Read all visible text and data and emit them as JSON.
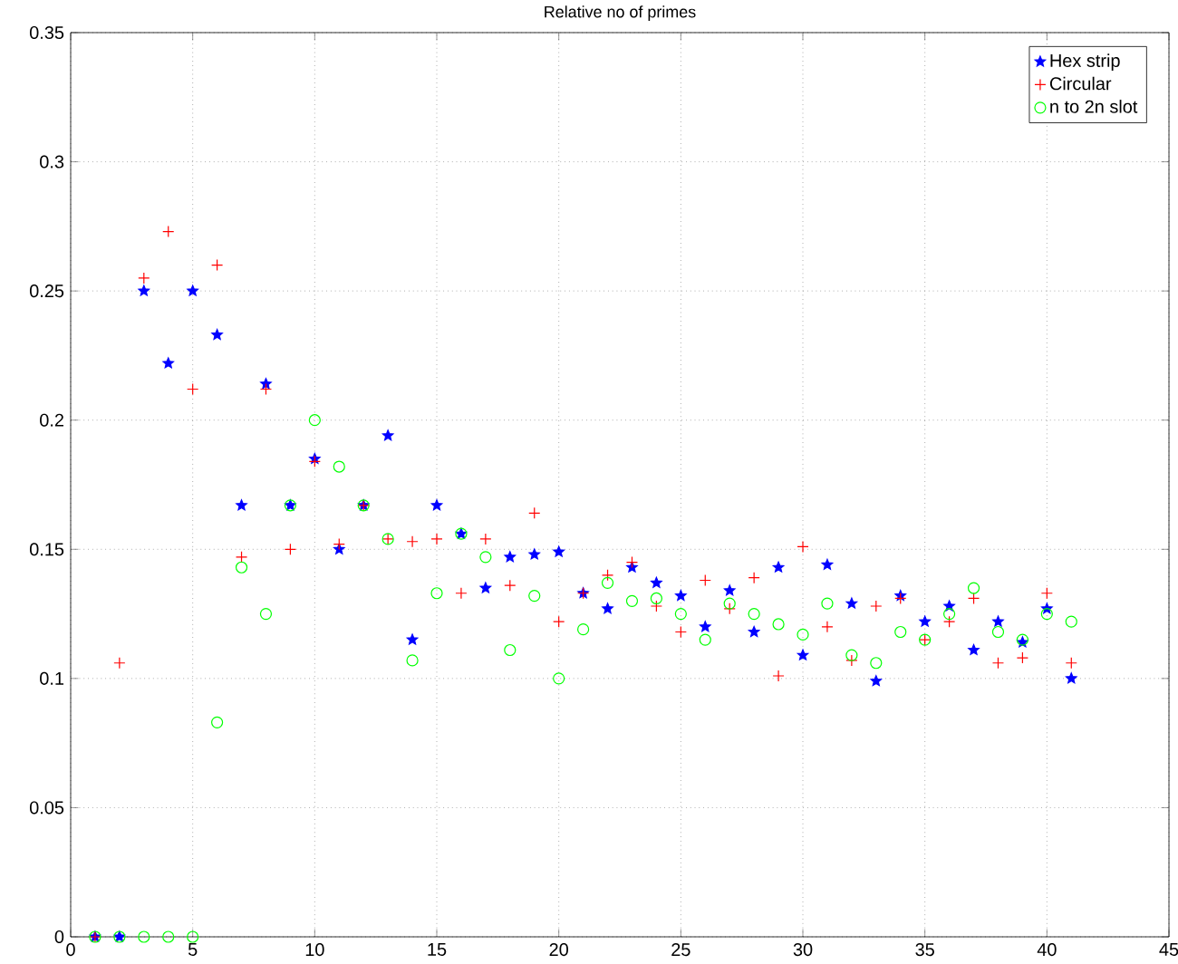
{
  "chart_data": {
    "type": "scatter",
    "title": "Relative no of primes",
    "x": [
      1,
      2,
      3,
      4,
      5,
      6,
      7,
      8,
      9,
      10,
      11,
      12,
      13,
      14,
      15,
      16,
      17,
      18,
      19,
      20,
      21,
      22,
      23,
      24,
      25,
      26,
      27,
      28,
      29,
      30,
      31,
      32,
      33,
      34,
      35,
      36,
      37,
      38,
      39,
      40,
      41
    ],
    "series": [
      {
        "name": "Hex strip",
        "color": "#0000ff",
        "marker": "star",
        "values": [
          0,
          0,
          0.25,
          0.222,
          0.25,
          0.233,
          0.167,
          0.214,
          0.167,
          0.185,
          0.15,
          0.167,
          0.194,
          0.115,
          0.167,
          0.156,
          0.135,
          0.147,
          0.148,
          0.149,
          0.133,
          0.127,
          0.143,
          0.137,
          0.132,
          0.12,
          0.134,
          0.118,
          0.143,
          0.109,
          0.144,
          0.129,
          0.099,
          0.132,
          0.122,
          0.128,
          0.111,
          0.122,
          0.114,
          0.127,
          0.1
        ]
      },
      {
        "name": "Circular",
        "color": "#ff0000",
        "marker": "cross",
        "values": [
          0,
          0.106,
          0.255,
          0.273,
          0.212,
          0.26,
          0.147,
          0.212,
          0.15,
          0.184,
          0.152,
          0.167,
          0.154,
          0.153,
          0.154,
          0.133,
          0.154,
          0.136,
          0.164,
          0.122,
          0.133,
          0.14,
          0.145,
          0.128,
          0.118,
          0.138,
          0.127,
          0.139,
          0.101,
          0.151,
          0.12,
          0.107,
          0.128,
          0.131,
          0.115,
          0.122,
          0.131,
          0.106,
          0.108,
          0.133,
          0.106
        ]
      },
      {
        "name": "n to 2n slot",
        "color": "#00ff00",
        "marker": "circle",
        "values": [
          0,
          0,
          0,
          0,
          0,
          0.083,
          0.143,
          0.125,
          0.167,
          0.2,
          0.182,
          0.167,
          0.154,
          0.107,
          0.133,
          0.156,
          0.147,
          0.111,
          0.132,
          0.1,
          0.119,
          0.137,
          0.13,
          0.131,
          0.125,
          0.115,
          0.129,
          0.125,
          0.121,
          0.117,
          0.129,
          0.109,
          0.106,
          0.118,
          0.115,
          0.125,
          0.135,
          0.118,
          0.115,
          0.125,
          0.122
        ]
      }
    ],
    "xlim": [
      0,
      45
    ],
    "ylim": [
      0,
      0.35
    ],
    "xticks": [
      0,
      5,
      10,
      15,
      20,
      25,
      30,
      35,
      40,
      45
    ],
    "yticks": [
      0,
      0.05,
      0.1,
      0.15,
      0.2,
      0.25,
      0.3,
      0.35
    ],
    "grid": true,
    "legend": "top right"
  }
}
